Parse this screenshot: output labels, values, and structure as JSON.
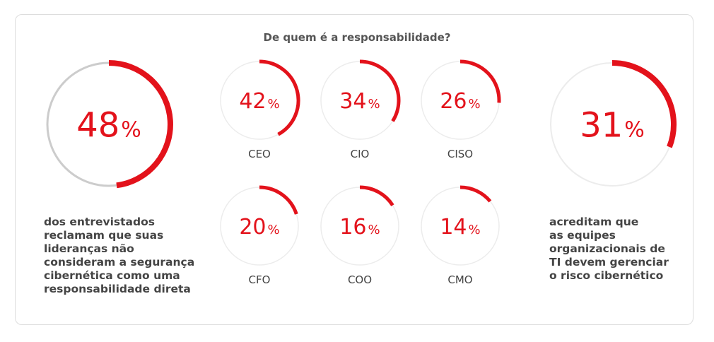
{
  "chart_data": {
    "type": "donut-gauges",
    "title": "De quem é a responsabilidade?",
    "unit": "%",
    "colors": {
      "accent": "#e3121b",
      "track": "#cccccc",
      "track_light": "#ececec",
      "text": "#444444"
    },
    "highlights": [
      {
        "value": 48,
        "caption": "dos entrevistados\nreclamam que suas\nlideranças não\nconsideram a segurança\ncibernética como uma\nresponsabilidade direta"
      },
      {
        "value": 31,
        "caption": "acreditam que\nas equipes\norganizacionais de\nTI devem gerenciar\no risco cibernético"
      }
    ],
    "categories": [
      "CEO",
      "CIO",
      "CISO",
      "CFO",
      "COO",
      "CMO"
    ],
    "values": [
      42,
      34,
      26,
      20,
      16,
      14
    ]
  }
}
